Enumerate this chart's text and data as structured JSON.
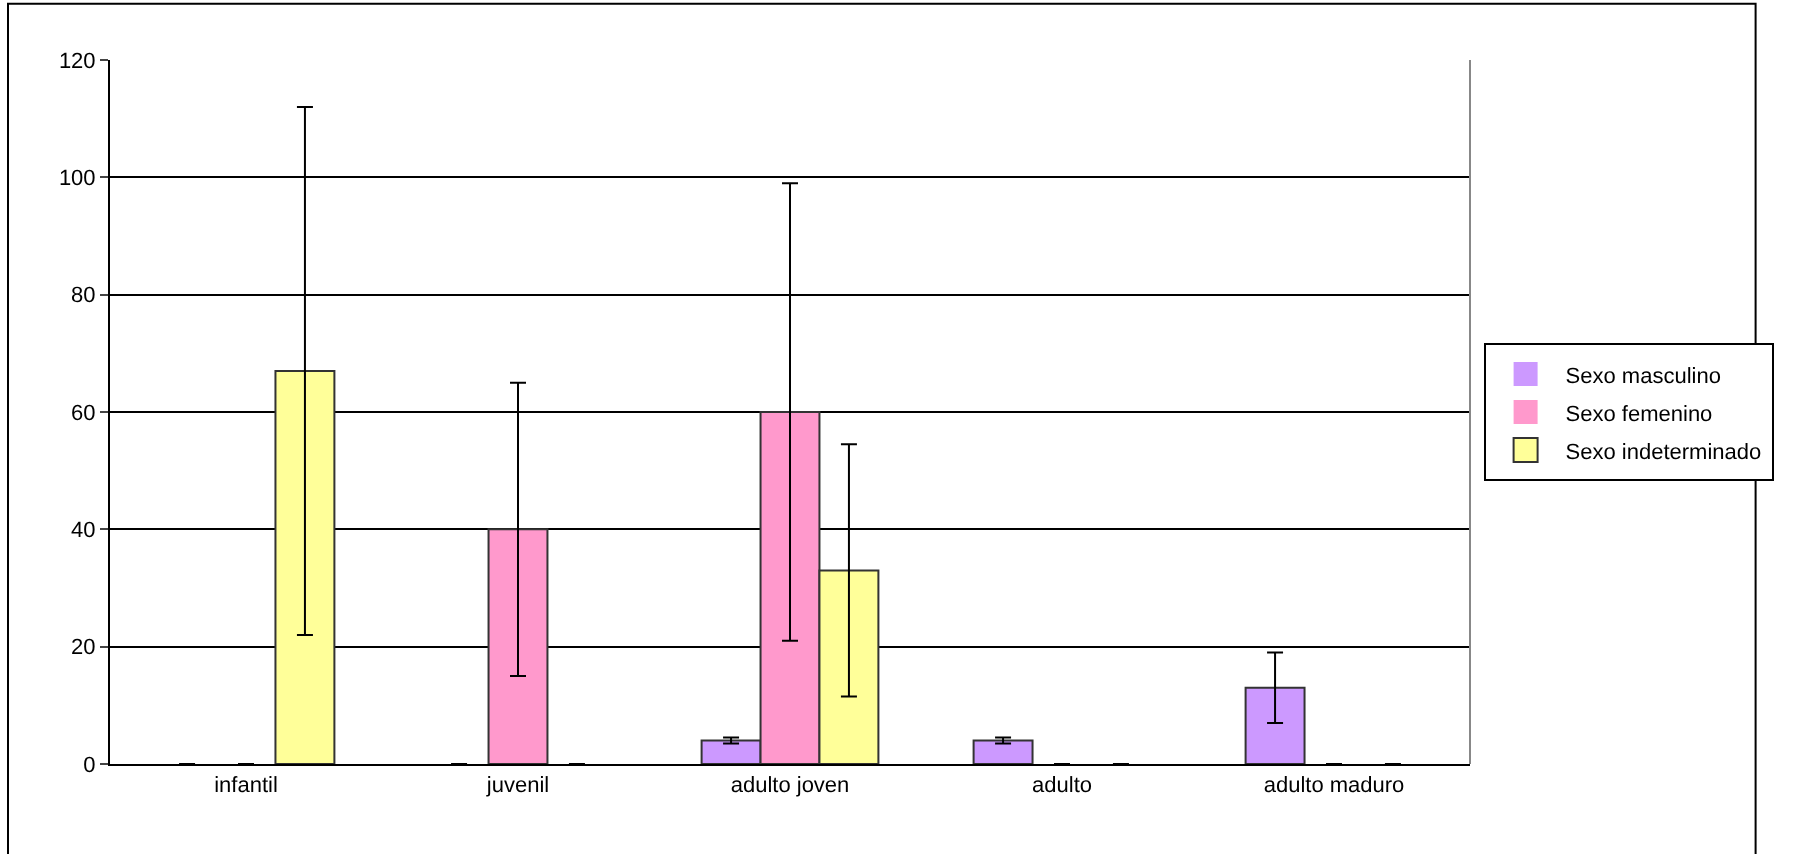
{
  "chart_data": {
    "type": "bar",
    "categories": [
      "infantil",
      "juvenil",
      "adulto joven",
      "adulto",
      "adulto maduro"
    ],
    "series": [
      {
        "name": "Sexo masculino",
        "color": "#cc99ff",
        "values": [
          0,
          0,
          4,
          4,
          13
        ],
        "errors": [
          null,
          null,
          0.5,
          0.5,
          6
        ]
      },
      {
        "name": "Sexo femenino",
        "color": "#ff99cc",
        "values": [
          0,
          40,
          60,
          0,
          0
        ],
        "errors": [
          null,
          25,
          39,
          null,
          null
        ]
      },
      {
        "name": "Sexo indeterminado",
        "color": "#ffff99",
        "values": [
          67,
          0,
          33,
          0,
          0
        ],
        "errors": [
          45,
          null,
          21.5,
          null,
          null
        ]
      }
    ],
    "ylim": [
      0,
      120
    ],
    "yticks": [
      0,
      20,
      40,
      60,
      80,
      100,
      120
    ],
    "grid": "y",
    "legend": "right"
  }
}
